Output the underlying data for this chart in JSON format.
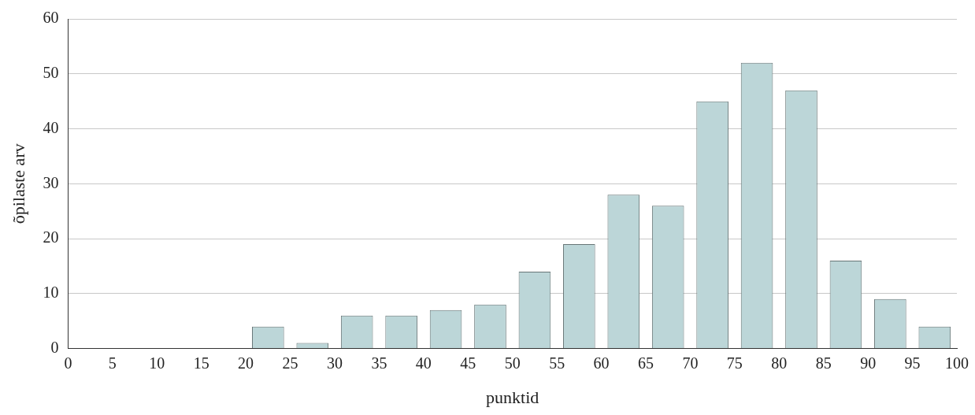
{
  "chart_data": {
    "type": "histogram",
    "xlabel": "punktid",
    "ylabel": "õpilaste arv",
    "bins": [
      0,
      5,
      10,
      15,
      20,
      25,
      30,
      35,
      40,
      45,
      50,
      55,
      60,
      65,
      70,
      75,
      80,
      85,
      90,
      95,
      100
    ],
    "values": [
      0,
      0,
      0,
      0,
      4,
      1,
      6,
      6,
      7,
      8,
      14,
      19,
      28,
      26,
      45,
      52,
      47,
      16,
      9,
      4
    ],
    "color": "#bcd6d8",
    "xlim": [
      0,
      100
    ],
    "xticks": [
      0,
      5,
      10,
      15,
      20,
      25,
      30,
      35,
      40,
      45,
      50,
      55,
      60,
      65,
      70,
      75,
      80,
      85,
      90,
      95,
      100
    ],
    "ylim": [
      0,
      60
    ],
    "yticks": [
      0,
      10,
      20,
      30,
      40,
      50,
      60
    ],
    "grid": "y",
    "legend": false
  }
}
